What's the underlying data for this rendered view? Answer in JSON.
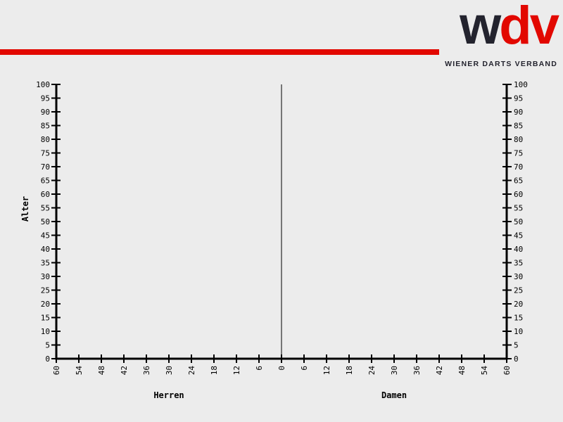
{
  "colors": {
    "background": "#ececec",
    "red": "#e20800",
    "dark": "#23232e",
    "axis": "#000000"
  },
  "header": {
    "logo": {
      "word_dark": "w",
      "word_red": "dv",
      "tagline": "WIENER DARTS VERBAND"
    }
  },
  "chart_data": {
    "type": "bar",
    "variant": "population-pyramid",
    "title": "",
    "ylabel": "Alter",
    "ylim": [
      0,
      100
    ],
    "y_tick_step": 5,
    "y_ticks": [
      0,
      5,
      10,
      15,
      20,
      25,
      30,
      35,
      40,
      45,
      50,
      55,
      60,
      65,
      70,
      75,
      80,
      85,
      90,
      95,
      100
    ],
    "xlim_per_side": [
      0,
      60
    ],
    "x_tick_step": 6,
    "x_ticks_left": [
      60,
      54,
      48,
      42,
      36,
      30,
      24,
      18,
      12,
      6
    ],
    "x_tick_center": 0,
    "x_ticks_right": [
      6,
      12,
      18,
      24,
      30,
      36,
      42,
      48,
      54,
      60
    ],
    "grid": false,
    "series": [
      {
        "name": "Herren",
        "side": "left",
        "values": []
      },
      {
        "name": "Damen",
        "side": "right",
        "values": []
      }
    ]
  }
}
